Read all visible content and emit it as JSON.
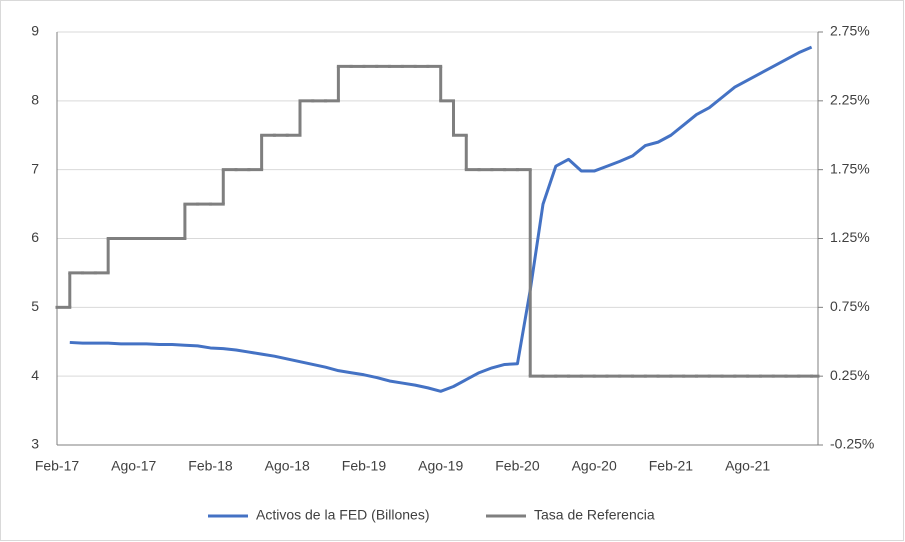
{
  "chart_data": {
    "type": "line",
    "x": [
      "Feb-17",
      null,
      null,
      null,
      null,
      null,
      "Ago-17",
      null,
      null,
      null,
      null,
      null,
      "Feb-18",
      null,
      null,
      null,
      null,
      null,
      "Ago-18",
      null,
      null,
      null,
      null,
      null,
      "Feb-19",
      null,
      null,
      null,
      null,
      null,
      "Ago-19",
      null,
      null,
      null,
      null,
      null,
      "Feb-20",
      null,
      null,
      null,
      null,
      null,
      "Ago-20",
      null,
      null,
      null,
      null,
      null,
      "Feb-21",
      null,
      null,
      null,
      null,
      null,
      "Ago-21",
      null,
      null,
      null,
      null,
      null
    ],
    "series": [
      {
        "name": "Activos de la FED (Billones)",
        "color": "#4472c4",
        "step": false,
        "values": [
          null,
          4.49,
          4.48,
          4.48,
          4.48,
          4.47,
          4.47,
          4.47,
          4.46,
          4.46,
          4.45,
          4.44,
          4.41,
          4.4,
          4.38,
          4.35,
          4.32,
          4.29,
          4.25,
          4.21,
          4.17,
          4.13,
          4.08,
          4.05,
          4.02,
          3.98,
          3.93,
          3.9,
          3.87,
          3.83,
          3.78,
          3.85,
          3.95,
          4.05,
          4.12,
          4.17,
          4.18,
          5.25,
          6.5,
          7.05,
          7.15,
          6.98,
          6.98,
          7.05,
          7.12,
          7.2,
          7.35,
          7.4,
          7.5,
          7.65,
          7.8,
          7.9,
          8.05,
          8.2,
          8.3,
          8.4,
          8.5,
          8.6,
          8.7,
          8.78
        ]
      },
      {
        "name": "Tasa de Referencia",
        "color": "#7f7f7f",
        "axis": "y2",
        "step": true,
        "values": [
          0.75,
          1.0,
          1.0,
          1.0,
          1.25,
          1.25,
          1.25,
          1.25,
          1.25,
          1.25,
          1.5,
          1.5,
          1.5,
          1.75,
          1.75,
          1.75,
          2.0,
          2.0,
          2.0,
          2.25,
          2.25,
          2.25,
          2.5,
          2.5,
          2.5,
          2.5,
          2.5,
          2.5,
          2.5,
          2.5,
          2.25,
          2.0,
          1.75,
          1.75,
          1.75,
          1.75,
          1.75,
          0.25,
          0.25,
          0.25,
          0.25,
          0.25,
          0.25,
          0.25,
          0.25,
          0.25,
          0.25,
          0.25,
          0.25,
          0.25,
          0.25,
          0.25,
          0.25,
          0.25,
          0.25,
          0.25,
          0.25,
          0.25,
          0.25,
          0.25
        ]
      }
    ],
    "ylim": [
      3,
      9
    ],
    "yticks": [
      3,
      4,
      5,
      6,
      7,
      8,
      9
    ],
    "y2lim": [
      -0.25,
      2.75
    ],
    "y2ticks": [
      {
        "value": -0.25,
        "label": "-0.25%"
      },
      {
        "value": 0.25,
        "label": "0.25%"
      },
      {
        "value": 0.75,
        "label": "0.75%"
      },
      {
        "value": 1.25,
        "label": "1.25%"
      },
      {
        "value": 1.75,
        "label": "1.75%"
      },
      {
        "value": 2.25,
        "label": "2.25%"
      },
      {
        "value": 2.75,
        "label": "2.75%"
      }
    ],
    "grid": true,
    "legend": "bottom"
  }
}
